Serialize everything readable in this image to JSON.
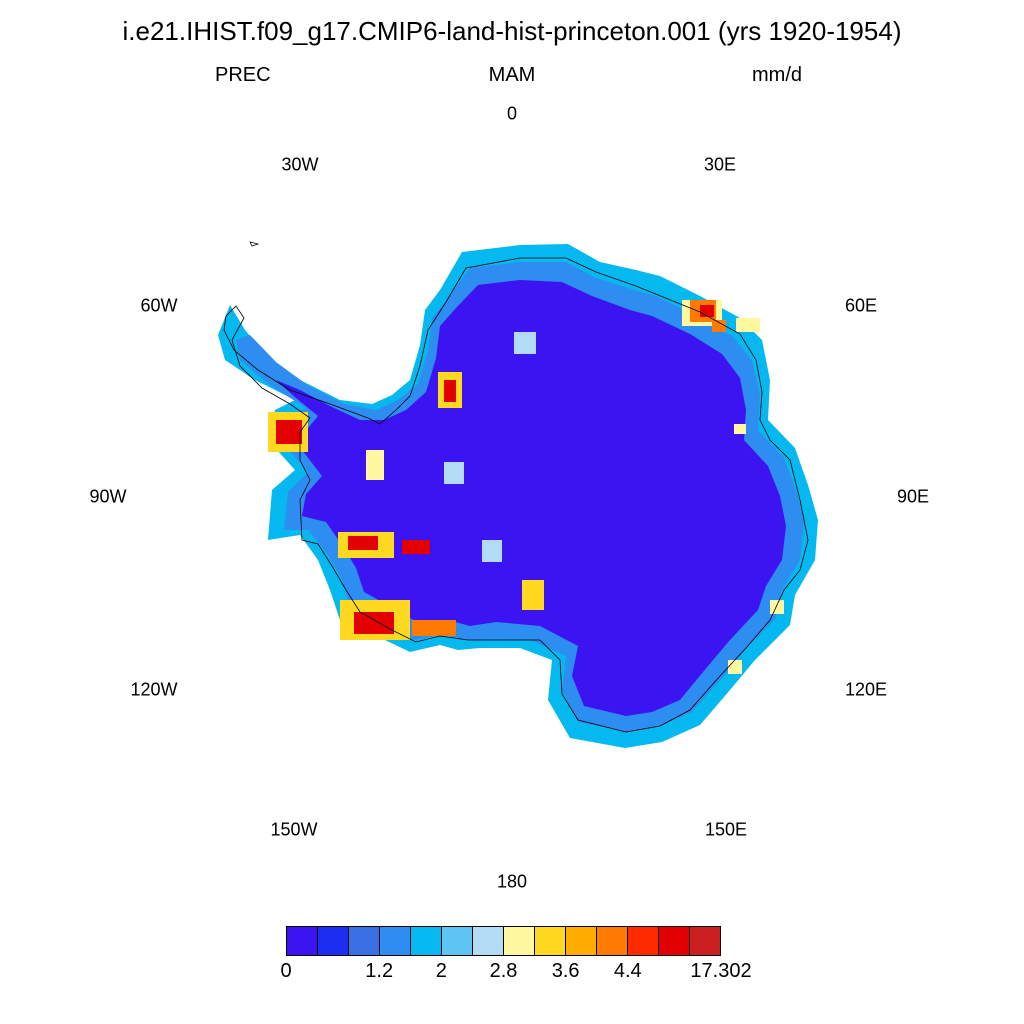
{
  "title": "i.e21.IHIST.f09_g17.CMIP6-land-hist-princeton.001 (yrs 1920-1954)",
  "left_label": "PREC",
  "center_label": "MAM",
  "right_label": "mm/d",
  "longitude_labels": {
    "l0": "0",
    "l30e": "30E",
    "l60e": "60E",
    "l90e": "90E",
    "l120e": "120E",
    "l150e": "150E",
    "l180": "180",
    "l150w": "150W",
    "l120w": "120W",
    "l90w": "90W",
    "l60w": "60W",
    "l30w": "30W"
  },
  "colorbar": {
    "colors": [
      "#3c14f2",
      "#1c2ff0",
      "#3b6fe4",
      "#2e8df0",
      "#06b8f0",
      "#5ec5f2",
      "#b2dcf5",
      "#fff8a0",
      "#ffd820",
      "#ffac00",
      "#ff7a00",
      "#ff2a00",
      "#e30000",
      "#cc2020"
    ],
    "tick_labels": [
      "0",
      "1.2",
      "2",
      "2.8",
      "3.6",
      "4.4",
      "17.302"
    ]
  },
  "map_colors": {
    "interior": "#3c14f2",
    "coast_rim": "#2e8df0",
    "outer_rim": "#06b8f0",
    "light": "#b2dcf5",
    "yellow": "#fff8a0",
    "gold": "#ffd820",
    "orange": "#ff7a00",
    "red": "#e30000",
    "coastline": "#000000"
  }
}
